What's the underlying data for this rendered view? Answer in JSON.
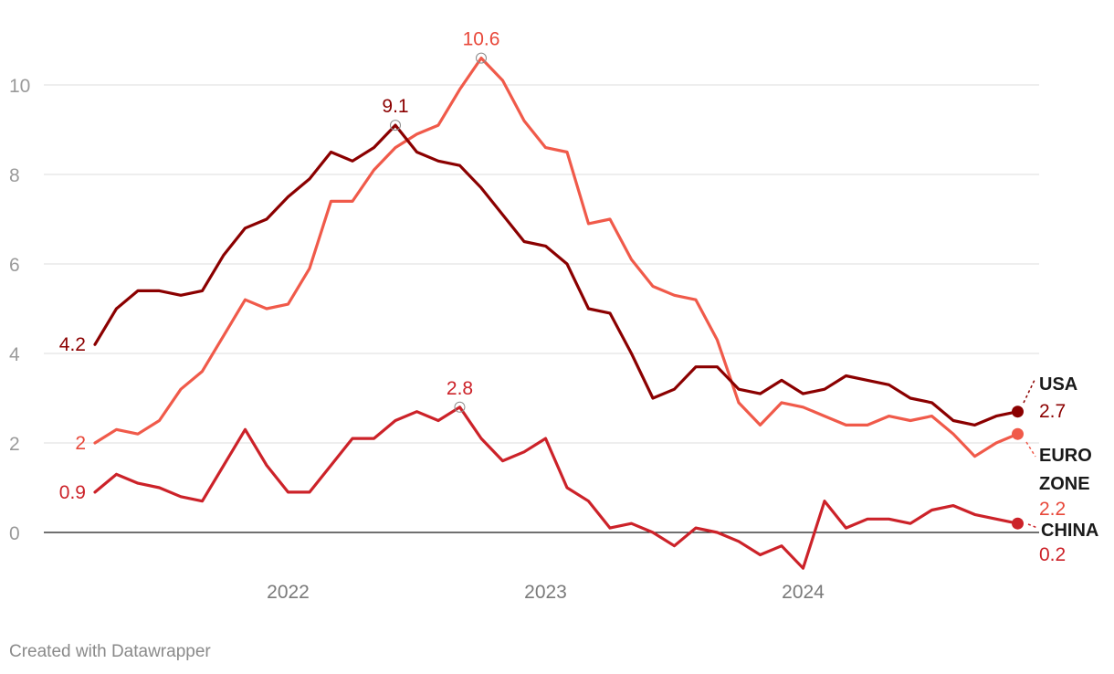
{
  "chart_data": {
    "type": "line",
    "ylim": [
      -0.8,
      10.6
    ],
    "y_ticks": [
      0,
      2,
      4,
      6,
      8,
      10
    ],
    "x_ticks": [
      "2022",
      "2023",
      "2024"
    ],
    "grid": true,
    "x_start": "2021-04",
    "series": [
      {
        "name": "USA",
        "color": "#8b0000",
        "values": [
          4.2,
          5.0,
          5.4,
          5.4,
          5.3,
          5.4,
          6.2,
          6.8,
          7.0,
          7.5,
          7.9,
          8.5,
          8.3,
          8.6,
          9.1,
          8.5,
          8.3,
          8.2,
          7.7,
          7.1,
          6.5,
          6.4,
          6.0,
          5.0,
          4.9,
          4.0,
          3.0,
          3.2,
          3.7,
          3.7,
          3.2,
          3.1,
          3.4,
          3.1,
          3.2,
          3.5,
          3.4,
          3.3,
          3.0,
          2.9,
          2.5,
          2.4,
          2.6,
          2.7
        ],
        "start_label": "4.2",
        "peak_label": "9.1",
        "end_label": "2.7"
      },
      {
        "name": "EURO ZONE",
        "color": "#f05a4a",
        "values": [
          2.0,
          2.3,
          2.2,
          2.5,
          3.2,
          3.6,
          4.4,
          5.2,
          5.0,
          5.1,
          5.9,
          7.4,
          7.4,
          8.1,
          8.6,
          8.9,
          9.1,
          9.9,
          10.6,
          10.1,
          9.2,
          8.6,
          8.5,
          6.9,
          7.0,
          6.1,
          5.5,
          5.3,
          5.2,
          4.3,
          2.9,
          2.4,
          2.9,
          2.8,
          2.6,
          2.4,
          2.4,
          2.6,
          2.5,
          2.6,
          2.2,
          1.7,
          2.0,
          2.2
        ],
        "start_label": "2",
        "peak_label": "10.6",
        "end_label": "2.2"
      },
      {
        "name": "CHINA",
        "color": "#cc2229",
        "values": [
          0.9,
          1.3,
          1.1,
          1.0,
          0.8,
          0.7,
          1.5,
          2.3,
          1.5,
          0.9,
          0.9,
          1.5,
          2.1,
          2.1,
          2.5,
          2.7,
          2.5,
          2.8,
          2.1,
          1.6,
          1.8,
          2.1,
          1.0,
          0.7,
          0.1,
          0.2,
          0.0,
          -0.3,
          0.1,
          0.0,
          -0.2,
          -0.5,
          -0.3,
          -0.8,
          0.7,
          0.1,
          0.3,
          0.3,
          0.2,
          0.5,
          0.6,
          0.4,
          0.3,
          0.2
        ],
        "start_label": "0.9",
        "peak_label": "2.8",
        "end_label": "0.2"
      }
    ]
  },
  "labels": {
    "usa": "USA",
    "euro_line1": "EURO",
    "euro_line2": "ZONE",
    "china": "CHINA"
  },
  "credit": "Created with Datawrapper"
}
